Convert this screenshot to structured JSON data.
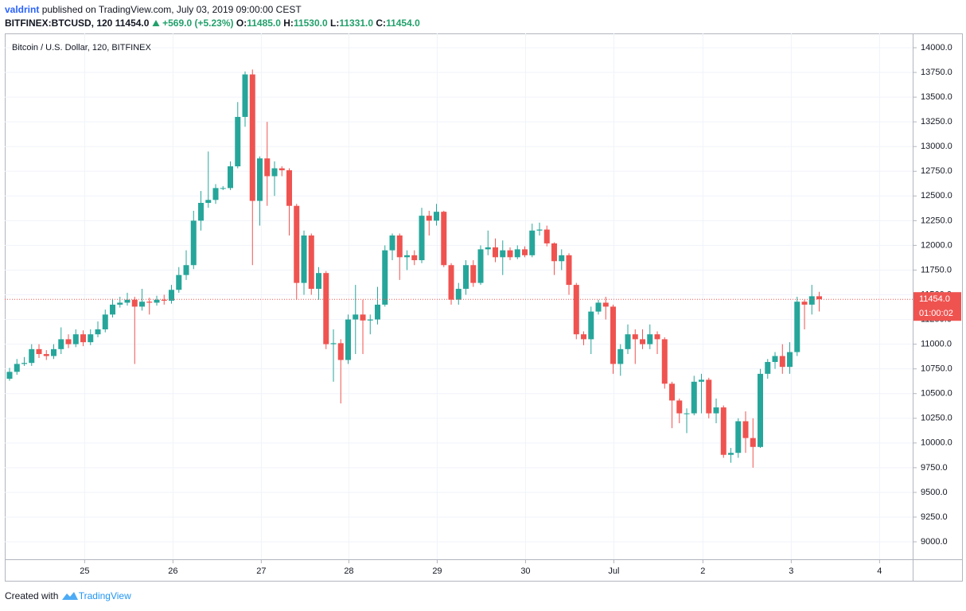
{
  "header": {
    "author": "valdrint",
    "published": "published on TradingView.com, July 03, 2019 09:00:00 CEST",
    "symbol": "BITFINEX:BTCUSD, 120",
    "last": "11454.0",
    "change": "+569.0 (+5.23%)",
    "ohlc": [
      {
        "label": "O:",
        "value": "11485.0"
      },
      {
        "label": "H:",
        "value": "11530.0"
      },
      {
        "label": "L:",
        "value": "11331.0"
      },
      {
        "label": "C:",
        "value": "11454.0"
      }
    ]
  },
  "footer": {
    "prefix": "Created with",
    "brand": "TradingView"
  },
  "chart_data": {
    "type": "candlestick",
    "title": "Bitcoin / U.S. Dollar, 120, BITFINEX",
    "up_color": "#26a69a",
    "down_color": "#ef5350",
    "grid": true,
    "last_price_label": "11454.0",
    "countdown": "01:00:02",
    "open": [
      10650,
      10720,
      10800,
      10810,
      10950,
      10900,
      10880,
      10950,
      11050,
      11000,
      11100,
      11020,
      11100,
      11150,
      11300,
      11400,
      11420,
      11450,
      11380,
      11430,
      11420,
      11450,
      11440,
      11550,
      11700,
      11800,
      12250,
      12430,
      12460,
      12580,
      12580,
      12800,
      13300,
      13730,
      12450,
      12880,
      12700,
      12780,
      12760,
      12400,
      11620,
      12100,
      11560,
      11720,
      11000,
      11010,
      10840,
      11250,
      11300,
      11240,
      11250,
      11400,
      11950,
      12100,
      11880,
      11900,
      11850,
      12300,
      12250,
      12340,
      11800,
      11450,
      11560,
      11800,
      11620,
      11960,
      11980,
      11880,
      11950,
      11880,
      11960,
      11900,
      12150,
      12160,
      12020,
      11840,
      11900,
      11600,
      11100,
      11050,
      11330,
      11420,
      11380,
      10800,
      10950,
      11100,
      11050,
      11000,
      11100,
      11050,
      10600,
      10430,
      10300,
      10300,
      10620,
      10640,
      10300,
      10360,
      9880,
      9900,
      10220,
      10050,
      9960,
      10700,
      10820,
      10880,
      10770,
      10920,
      11430,
      11400,
      11485
    ],
    "high": [
      10760,
      10850,
      10870,
      11000,
      11000,
      10940,
      11000,
      11170,
      11100,
      11150,
      11140,
      11150,
      11230,
      11350,
      11460,
      11480,
      11520,
      11480,
      11560,
      11470,
      11490,
      11500,
      11600,
      11780,
      11950,
      12350,
      12550,
      12950,
      12620,
      12600,
      12850,
      13450,
      13760,
      13780,
      12900,
      13250,
      12850,
      12800,
      12780,
      12420,
      12150,
      12120,
      11780,
      11740,
      11150,
      11050,
      11300,
      11600,
      11450,
      11300,
      11580,
      12000,
      12120,
      12120,
      11950,
      11950,
      12380,
      12350,
      12420,
      12350,
      11820,
      11620,
      11850,
      11850,
      12000,
      12150,
      12070,
      12050,
      11980,
      12000,
      11990,
      12220,
      12230,
      12200,
      12030,
      11960,
      11920,
      11620,
      11130,
      11380,
      11450,
      11480,
      11400,
      11000,
      11200,
      11150,
      11150,
      11200,
      11130,
      11070,
      10620,
      10450,
      10350,
      10680,
      10700,
      10660,
      10450,
      10380,
      9950,
      10250,
      10320,
      10250,
      10750,
      10850,
      10920,
      11000,
      11020,
      11480,
      11450,
      11600,
      11530
    ],
    "low": [
      10630,
      10690,
      10780,
      10780,
      10860,
      10840,
      10850,
      10900,
      10960,
      10970,
      10980,
      10990,
      11070,
      11120,
      11270,
      11370,
      11390,
      10800,
      11340,
      11300,
      11390,
      11400,
      11410,
      11520,
      11650,
      11760,
      12150,
      12380,
      12420,
      12560,
      12560,
      12780,
      13200,
      11800,
      12200,
      12400,
      12500,
      12700,
      12100,
      11450,
      11500,
      11500,
      11450,
      10950,
      10620,
      10400,
      10800,
      10900,
      10900,
      11100,
      11200,
      11380,
      11850,
      11650,
      11750,
      11800,
      11820,
      12100,
      12200,
      11780,
      11400,
      11400,
      11500,
      11580,
      11600,
      11900,
      11830,
      11700,
      11850,
      11860,
      11880,
      11880,
      12100,
      11990,
      11700,
      11750,
      11500,
      11050,
      10990,
      10900,
      11300,
      11250,
      10700,
      10680,
      10900,
      10800,
      10950,
      10950,
      10900,
      10550,
      10150,
      10200,
      10100,
      10280,
      10300,
      10250,
      10200,
      9850,
      9800,
      9850,
      9900,
      9750,
      9950,
      10650,
      10750,
      10700,
      10700,
      10880,
      11150,
      11300,
      11331
    ],
    "close": [
      10720,
      10800,
      10810,
      10950,
      10900,
      10880,
      10950,
      11050,
      11000,
      11100,
      11020,
      11100,
      11150,
      11300,
      11400,
      11420,
      11450,
      11380,
      11430,
      11420,
      11450,
      11440,
      11550,
      11700,
      11800,
      12250,
      12430,
      12460,
      12580,
      12580,
      12800,
      13300,
      13730,
      12450,
      12880,
      12700,
      12780,
      12760,
      12400,
      11620,
      12100,
      11560,
      11720,
      11000,
      11010,
      10840,
      11250,
      11300,
      11240,
      11250,
      11400,
      11950,
      12100,
      11880,
      11900,
      11850,
      12300,
      12250,
      12340,
      11800,
      11450,
      11560,
      11800,
      11620,
      11960,
      11980,
      11880,
      11950,
      11880,
      11960,
      11900,
      12150,
      12160,
      12020,
      11840,
      11900,
      11600,
      11100,
      11050,
      11330,
      11420,
      11380,
      10800,
      10950,
      11100,
      11050,
      11000,
      11100,
      11050,
      10600,
      10430,
      10300,
      10300,
      10620,
      10640,
      10300,
      10360,
      9880,
      9900,
      10220,
      10050,
      9960,
      10700,
      10820,
      10880,
      10770,
      10920,
      11430,
      11400,
      11485,
      11454
    ],
    "xlim": [
      -0.65,
      122.7
    ],
    "xticks": [
      {
        "value": 10.2,
        "label": "25"
      },
      {
        "value": 22.2,
        "label": "26"
      },
      {
        "value": 34.2,
        "label": "27"
      },
      {
        "value": 46.1,
        "label": "28"
      },
      {
        "value": 58.1,
        "label": "29"
      },
      {
        "value": 70.1,
        "label": "30"
      },
      {
        "value": 82.1,
        "label": "Jul"
      },
      {
        "value": 94.2,
        "label": "2"
      },
      {
        "value": 106.2,
        "label": "3"
      },
      {
        "value": 118.2,
        "label": "4"
      }
    ],
    "ylim": [
      8823,
      14145
    ],
    "yticks": [
      {
        "value": 9000,
        "label": "9000.0"
      },
      {
        "value": 9250,
        "label": "9250.0"
      },
      {
        "value": 9500,
        "label": "9500.0"
      },
      {
        "value": 9750,
        "label": "9750.0"
      },
      {
        "value": 10000,
        "label": "10000.0"
      },
      {
        "value": 10250,
        "label": "10250.0"
      },
      {
        "value": 10500,
        "label": "10500.0"
      },
      {
        "value": 10750,
        "label": "10750.0"
      },
      {
        "value": 11000,
        "label": "11000.0"
      },
      {
        "value": 11250,
        "label": "11250.0"
      },
      {
        "value": 11500,
        "label": "11500.0"
      },
      {
        "value": 11750,
        "label": "11750.0"
      },
      {
        "value": 12000,
        "label": "12000.0"
      },
      {
        "value": 12250,
        "label": "12250.0"
      },
      {
        "value": 12500,
        "label": "12500.0"
      },
      {
        "value": 12750,
        "label": "12750.0"
      },
      {
        "value": 13000,
        "label": "13000.0"
      },
      {
        "value": 13250,
        "label": "13250.0"
      },
      {
        "value": 13500,
        "label": "13500.0"
      },
      {
        "value": 13750,
        "label": "13750.0"
      },
      {
        "value": 14000,
        "label": "14000.0"
      }
    ]
  }
}
